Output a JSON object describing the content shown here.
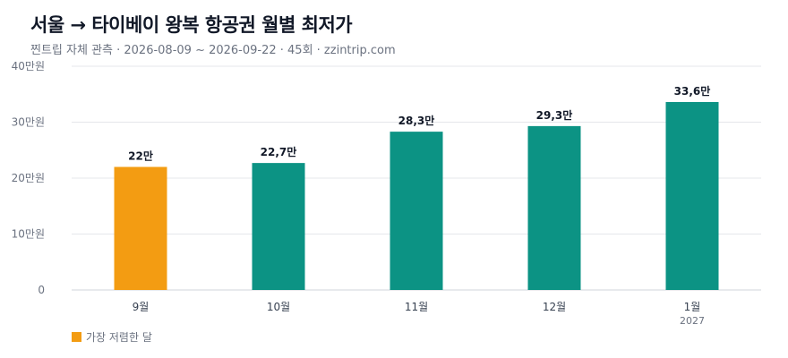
{
  "title": "서울 → 타이베이 왕복 항공권 월별 최저가",
  "subtitle": "찐트립 자체 관측 · 2026-08-09 ~ 2026-09-22 · 45회 · zzintrip.com",
  "legend": {
    "highlight_label": "가장 저렴한 달"
  },
  "colors": {
    "highlight": "#f39c12",
    "bar": "#0c9384",
    "grid": "#e5e7eb",
    "axis_text": "#6b7280",
    "label_text": "#111827"
  },
  "chart_data": {
    "type": "bar",
    "categories": [
      "9월",
      "10월",
      "11월",
      "12월",
      "1월"
    ],
    "category_sublabels": [
      "",
      "",
      "",
      "",
      "2027"
    ],
    "values": [
      22,
      22.7,
      28.3,
      29.3,
      33.6
    ],
    "value_labels": [
      "22만",
      "22,7만",
      "28,3만",
      "29,3만",
      "33,6만"
    ],
    "highlight_index": 0,
    "yticks": [
      0,
      10,
      20,
      30,
      40
    ],
    "ytick_labels": [
      "0",
      "10만원",
      "20만원",
      "30만원",
      "40만원"
    ],
    "ylim": [
      0,
      40
    ],
    "grid": true,
    "legend_position": "bottom-left"
  }
}
